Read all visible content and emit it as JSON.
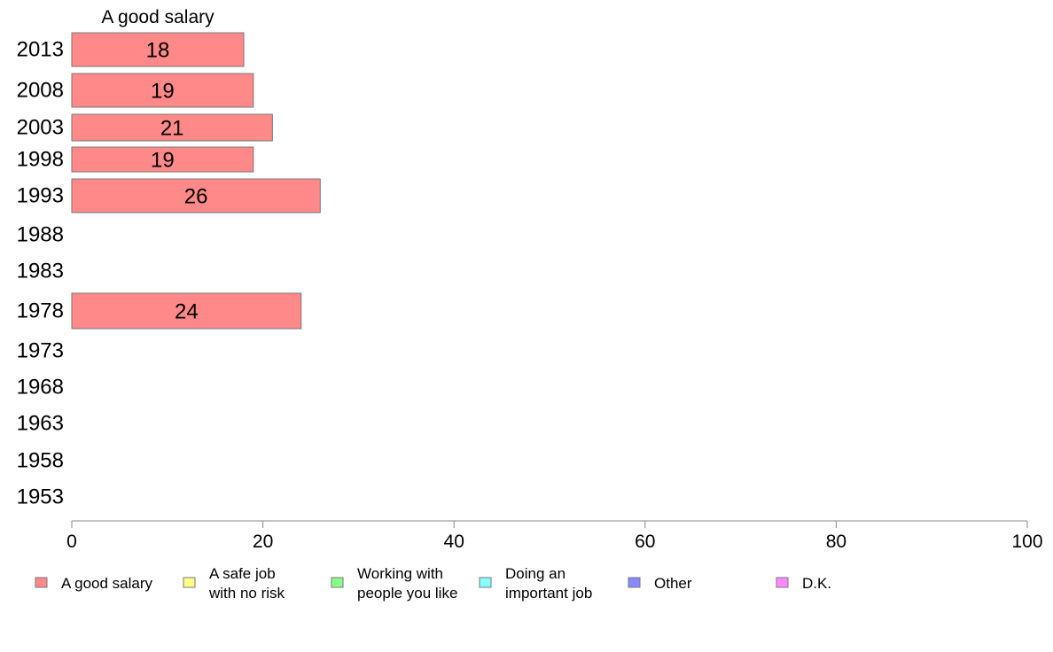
{
  "chart_data": {
    "type": "bar",
    "orientation": "horizontal",
    "series_title": "A good salary",
    "categories": [
      "2013",
      "2008",
      "2003",
      "1998",
      "1993",
      "1988",
      "1983",
      "1978",
      "1973",
      "1968",
      "1963",
      "1958",
      "1953"
    ],
    "series": [
      {
        "name": "A good salary",
        "values": [
          18,
          19,
          21,
          19,
          26,
          null,
          null,
          24,
          null,
          null,
          null,
          null,
          null
        ],
        "color": "#ff8888"
      }
    ],
    "xlim": [
      0,
      100
    ],
    "xticks": [
      0,
      20,
      40,
      60,
      80,
      100
    ],
    "grid": false,
    "legend_position": "bottom",
    "legend": [
      {
        "lines": [
          "A good salary"
        ],
        "color": "#ff8888"
      },
      {
        "lines": [
          "A safe job",
          "with no risk"
        ],
        "color": "#ffff88"
      },
      {
        "lines": [
          "Working with",
          "people you like"
        ],
        "color": "#88ff88"
      },
      {
        "lines": [
          "Doing an",
          "important job"
        ],
        "color": "#88ffff"
      },
      {
        "lines": [
          "Other"
        ],
        "color": "#8888ff"
      },
      {
        "lines": [
          "D.K."
        ],
        "color": "#ff88ff"
      }
    ]
  }
}
